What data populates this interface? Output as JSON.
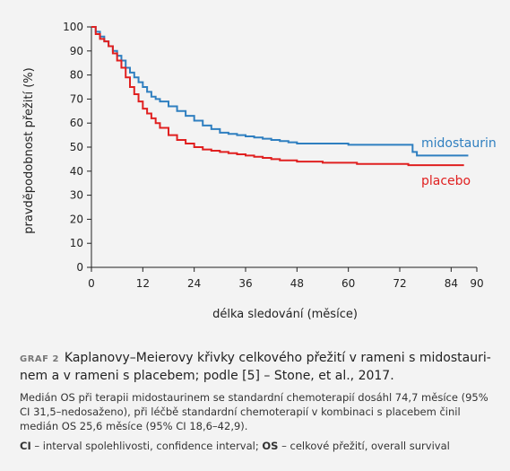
{
  "chart_data": {
    "type": "line",
    "xlabel": "délka sledování (měsíce)",
    "ylabel": "pravděpodobnost přežití (%)",
    "xlim": [
      0,
      90
    ],
    "ylim": [
      0,
      100
    ],
    "x_ticks": [
      0,
      12,
      24,
      36,
      48,
      60,
      72,
      84,
      90
    ],
    "y_ticks": [
      0,
      10,
      20,
      30,
      40,
      50,
      60,
      70,
      80,
      90,
      100
    ],
    "grid": false,
    "series": [
      {
        "name": "midostaurin",
        "color": "#2f7fc0",
        "x": [
          0,
          1,
          2,
          3,
          4,
          5,
          6,
          7,
          8,
          9,
          10,
          11,
          12,
          13,
          14,
          15,
          16,
          18,
          20,
          22,
          24,
          26,
          28,
          30,
          32,
          34,
          36,
          38,
          40,
          42,
          44,
          46,
          48,
          50,
          52,
          54,
          56,
          58,
          60,
          62,
          64,
          66,
          68,
          70,
          72,
          74,
          75,
          76,
          78,
          80,
          82,
          84,
          86,
          88
        ],
        "y": [
          100,
          98,
          96,
          94,
          92,
          90,
          88,
          86,
          83,
          81,
          79,
          77,
          75,
          73,
          71,
          70,
          69,
          67,
          65,
          63,
          61,
          59,
          57.5,
          56,
          55.5,
          55,
          54.5,
          54,
          53.5,
          53,
          52.5,
          52,
          51.5,
          51.5,
          51.5,
          51.5,
          51.5,
          51.5,
          51,
          51,
          51,
          51,
          51,
          51,
          51,
          51,
          48,
          46.5,
          46.5,
          46.5,
          46.5,
          46.5,
          46.5,
          46.5
        ]
      },
      {
        "name": "placebo",
        "color": "#e02020",
        "x": [
          0,
          1,
          2,
          3,
          4,
          5,
          6,
          7,
          8,
          9,
          10,
          11,
          12,
          13,
          14,
          15,
          16,
          18,
          20,
          22,
          24,
          26,
          28,
          30,
          32,
          34,
          36,
          38,
          40,
          42,
          44,
          46,
          48,
          50,
          52,
          54,
          56,
          58,
          60,
          62,
          64,
          66,
          68,
          70,
          72,
          74,
          76,
          78,
          80,
          82,
          84,
          86,
          87
        ],
        "y": [
          100,
          97,
          95,
          94,
          92,
          89,
          86,
          83,
          79,
          75,
          72,
          69,
          66,
          64,
          62,
          60,
          58,
          55,
          53,
          51.5,
          50,
          49,
          48.5,
          48,
          47.5,
          47,
          46.5,
          46,
          45.5,
          45,
          44.5,
          44.5,
          44,
          44,
          44,
          43.5,
          43.5,
          43.5,
          43.5,
          43,
          43,
          43,
          43,
          43,
          43,
          42.5,
          42.5,
          42.5,
          42.5,
          42.5,
          42.5,
          42.5,
          42.5
        ]
      }
    ]
  },
  "caption": {
    "tag": "GRAF 2",
    "title": "Kaplanovy–Meierovy křivky celkového přežití v rameni s midostauri-nem a v rameni s placebem; podle [5] – Stone, et al., 2017.",
    "note1": "Medián OS při terapii midostaurinem se standardní chemoterapií dosáhl 74,7 měsíce (95% CI 31,5–nedosaženo), při léčbě standardní chemoterapií v kombinaci s placebem činil medián OS 25,6 měsíce (95% CI 18,6–42,9).",
    "ci_abbr": "CI",
    "ci_text": " – interval spolehlivosti, confidence interval; ",
    "os_abbr": "OS",
    "os_text": " – celkové přežití, overall survival"
  }
}
